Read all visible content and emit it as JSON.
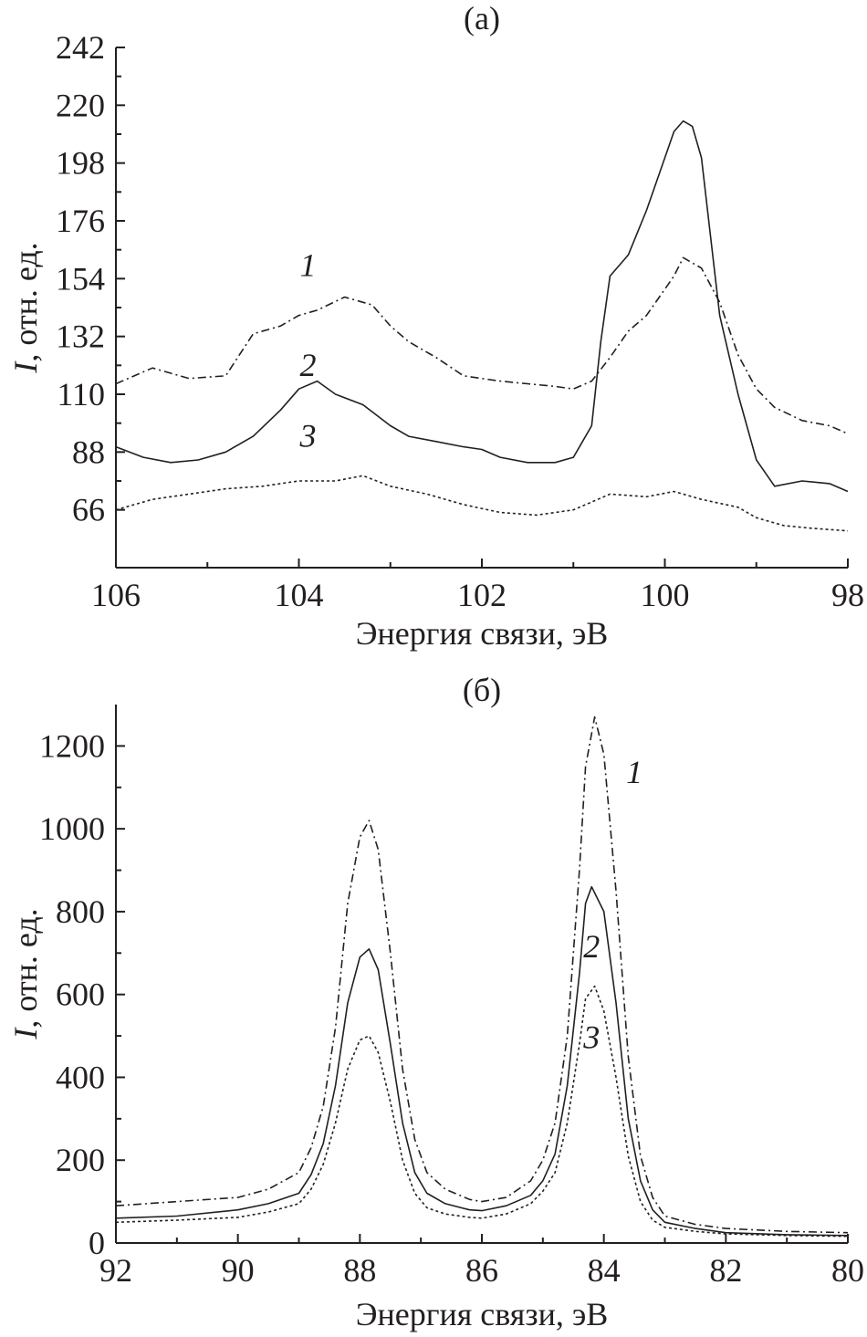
{
  "chart_data": [
    {
      "type": "line",
      "panel_label": "(а)",
      "xlabel": "Энергия связи, эВ",
      "ylabel_italic": "I",
      "ylabel_rest": ", отн. ед.",
      "xlim": [
        106,
        98
      ],
      "ylim": [
        44,
        242
      ],
      "x_reversed": true,
      "xticks": [
        106,
        104,
        102,
        100,
        98
      ],
      "yticks": [
        66,
        88,
        110,
        132,
        154,
        176,
        198,
        220,
        242
      ],
      "grid": false,
      "curve_labels": [
        {
          "text": "1",
          "x": 103.9,
          "y": 155
        },
        {
          "text": "2",
          "x": 103.9,
          "y": 117
        },
        {
          "text": "3",
          "x": 103.9,
          "y": 90
        }
      ],
      "series": [
        {
          "label": "1",
          "style": "dashdot",
          "x": [
            106.0,
            105.6,
            105.2,
            104.8,
            104.5,
            104.2,
            104.0,
            103.8,
            103.5,
            103.2,
            103.0,
            102.8,
            102.5,
            102.2,
            102.0,
            101.8,
            101.5,
            101.2,
            101.0,
            100.8,
            100.6,
            100.4,
            100.2,
            100.0,
            99.9,
            99.8,
            99.6,
            99.4,
            99.2,
            99.0,
            98.8,
            98.5,
            98.2,
            98.0
          ],
          "y": [
            114,
            120,
            116,
            117,
            133,
            136,
            140,
            142,
            147,
            144,
            136,
            130,
            124,
            117,
            116,
            115,
            114,
            113,
            112,
            115,
            124,
            134,
            140,
            150,
            155,
            162,
            158,
            145,
            125,
            112,
            105,
            100,
            98,
            95
          ]
        },
        {
          "label": "2",
          "style": "solid",
          "x": [
            106.0,
            105.7,
            105.4,
            105.1,
            104.8,
            104.5,
            104.2,
            104.0,
            103.8,
            103.6,
            103.3,
            103.0,
            102.8,
            102.5,
            102.2,
            102.0,
            101.8,
            101.5,
            101.2,
            101.0,
            100.8,
            100.7,
            100.6,
            100.4,
            100.2,
            100.0,
            99.9,
            99.8,
            99.7,
            99.6,
            99.5,
            99.4,
            99.2,
            99.0,
            98.8,
            98.5,
            98.2,
            98.0
          ],
          "y": [
            90,
            86,
            84,
            85,
            88,
            94,
            104,
            112,
            115,
            110,
            106,
            98,
            94,
            92,
            90,
            89,
            86,
            84,
            84,
            86,
            98,
            130,
            155,
            163,
            180,
            200,
            210,
            214,
            212,
            200,
            170,
            140,
            110,
            85,
            75,
            77,
            76,
            73
          ]
        },
        {
          "label": "3",
          "style": "dotted",
          "x": [
            106.0,
            105.6,
            105.2,
            104.8,
            104.4,
            104.0,
            103.6,
            103.3,
            103.0,
            102.6,
            102.2,
            101.8,
            101.4,
            101.0,
            100.6,
            100.2,
            99.9,
            99.6,
            99.2,
            99.0,
            98.7,
            98.4,
            98.0
          ],
          "y": [
            66,
            70,
            72,
            74,
            75,
            77,
            77,
            79,
            75,
            72,
            68,
            65,
            64,
            66,
            72,
            71,
            73,
            70,
            67,
            63,
            60,
            59,
            58
          ]
        }
      ]
    },
    {
      "type": "line",
      "panel_label": "(б)",
      "xlabel": "Энергия связи, эВ",
      "ylabel_italic": "I",
      "ylabel_rest": ", отн. ед.",
      "xlim": [
        92,
        80
      ],
      "ylim": [
        0,
        1300
      ],
      "x_reversed": true,
      "xticks": [
        92,
        90,
        88,
        86,
        84,
        82,
        80
      ],
      "yticks": [
        0,
        200,
        400,
        600,
        800,
        1000,
        1200
      ],
      "grid": false,
      "curve_labels": [
        {
          "text": "1",
          "x": 83.5,
          "y": 1110
        },
        {
          "text": "2",
          "x": 84.2,
          "y": 690
        },
        {
          "text": "3",
          "x": 84.2,
          "y": 470
        }
      ],
      "series": [
        {
          "label": "1",
          "style": "dashdot",
          "x": [
            92,
            91,
            90,
            89.5,
            89,
            88.8,
            88.6,
            88.4,
            88.2,
            88.0,
            87.85,
            87.7,
            87.5,
            87.3,
            87.1,
            86.9,
            86.6,
            86.2,
            86.0,
            85.6,
            85.2,
            85.0,
            84.8,
            84.6,
            84.4,
            84.3,
            84.15,
            84.0,
            83.8,
            83.6,
            83.4,
            83.2,
            83.0,
            82.5,
            82.0,
            81.0,
            80.0
          ],
          "y": [
            90,
            100,
            110,
            130,
            170,
            230,
            330,
            520,
            820,
            980,
            1020,
            950,
            700,
            420,
            250,
            170,
            130,
            105,
            100,
            110,
            150,
            200,
            290,
            500,
            900,
            1150,
            1270,
            1180,
            850,
            450,
            210,
            110,
            65,
            45,
            35,
            28,
            25
          ]
        },
        {
          "label": "2",
          "style": "solid",
          "x": [
            92,
            91,
            90,
            89.5,
            89,
            88.8,
            88.6,
            88.4,
            88.2,
            88.0,
            87.85,
            87.7,
            87.5,
            87.3,
            87.1,
            86.9,
            86.6,
            86.2,
            86.0,
            85.6,
            85.2,
            85.0,
            84.8,
            84.6,
            84.4,
            84.3,
            84.2,
            84.0,
            83.8,
            83.6,
            83.4,
            83.2,
            83.0,
            82.5,
            82.0,
            81.0,
            80.0
          ],
          "y": [
            60,
            65,
            80,
            95,
            120,
            165,
            240,
            380,
            580,
            690,
            710,
            660,
            480,
            290,
            170,
            120,
            95,
            80,
            78,
            90,
            115,
            150,
            215,
            380,
            650,
            820,
            860,
            800,
            580,
            300,
            150,
            80,
            50,
            35,
            25,
            20,
            18
          ]
        },
        {
          "label": "3",
          "style": "dotted",
          "x": [
            92,
            91,
            90,
            89.5,
            89,
            88.8,
            88.6,
            88.4,
            88.2,
            88.0,
            87.85,
            87.7,
            87.5,
            87.3,
            87.1,
            86.9,
            86.6,
            86.2,
            86.0,
            85.6,
            85.2,
            85.0,
            84.8,
            84.6,
            84.4,
            84.3,
            84.15,
            84.0,
            83.8,
            83.6,
            83.4,
            83.2,
            83.0,
            82.5,
            82.0,
            81.0,
            80.0
          ],
          "y": [
            50,
            55,
            62,
            75,
            95,
            130,
            190,
            290,
            420,
            490,
            500,
            460,
            340,
            200,
            120,
            85,
            70,
            62,
            60,
            70,
            95,
            125,
            170,
            290,
            480,
            590,
            620,
            560,
            400,
            210,
            100,
            55,
            38,
            28,
            22,
            18,
            16
          ]
        }
      ]
    }
  ]
}
